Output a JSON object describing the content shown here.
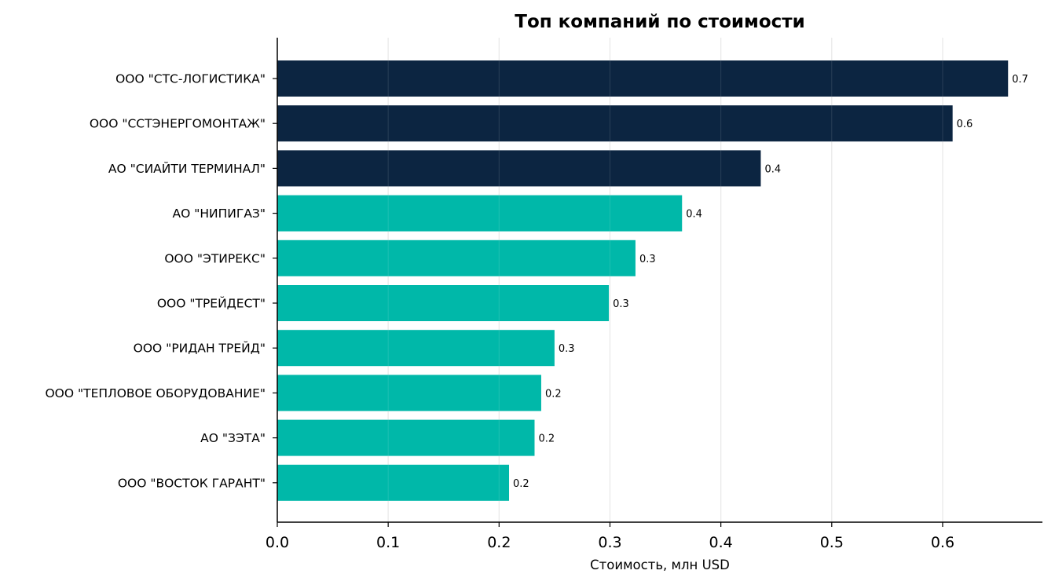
{
  "chart_data": {
    "type": "bar",
    "orientation": "horizontal",
    "title": "Топ компаний по стоимости",
    "xlabel": "Стоимость, млн USD",
    "ylabel": "",
    "xlim": [
      0,
      0.69
    ],
    "xticks": [
      0.0,
      0.1,
      0.2,
      0.3,
      0.4,
      0.5,
      0.6
    ],
    "xtick_labels": [
      "0.0",
      "0.1",
      "0.2",
      "0.3",
      "0.4",
      "0.5",
      "0.6"
    ],
    "grid": "vertical",
    "categories": [
      "ООО \"СТС-ЛОГИСТИКА\"",
      "ООО \"ССТЭНЕРГОМОНТАЖ\"",
      "АО \"СИАЙТИ ТЕРМИНАЛ\"",
      "АО \"НИПИГАЗ\"",
      "ООО \"ЭТИРЕКС\"",
      "ООО \"ТРЕЙДЕСТ\"",
      "ООО \"РИДАН ТРЕЙД\"",
      "ООО \"ТЕПЛОВОЕ ОБОРУДОВАНИЕ\"",
      "АО \"ЗЭТА\"",
      "ООО \"ВОСТОК ГАРАНТ\""
    ],
    "values": [
      0.659,
      0.609,
      0.436,
      0.365,
      0.323,
      0.299,
      0.25,
      0.238,
      0.232,
      0.209
    ],
    "data_labels": [
      "0.7",
      "0.6",
      "0.4",
      "0.4",
      "0.3",
      "0.3",
      "0.3",
      "0.2",
      "0.2",
      "0.2"
    ],
    "highlight_top_n": 3,
    "colors": {
      "highlight": "#0c2541",
      "normal": "#00b8a9",
      "grid": "#e6e6e6",
      "axis": "#000000"
    }
  }
}
